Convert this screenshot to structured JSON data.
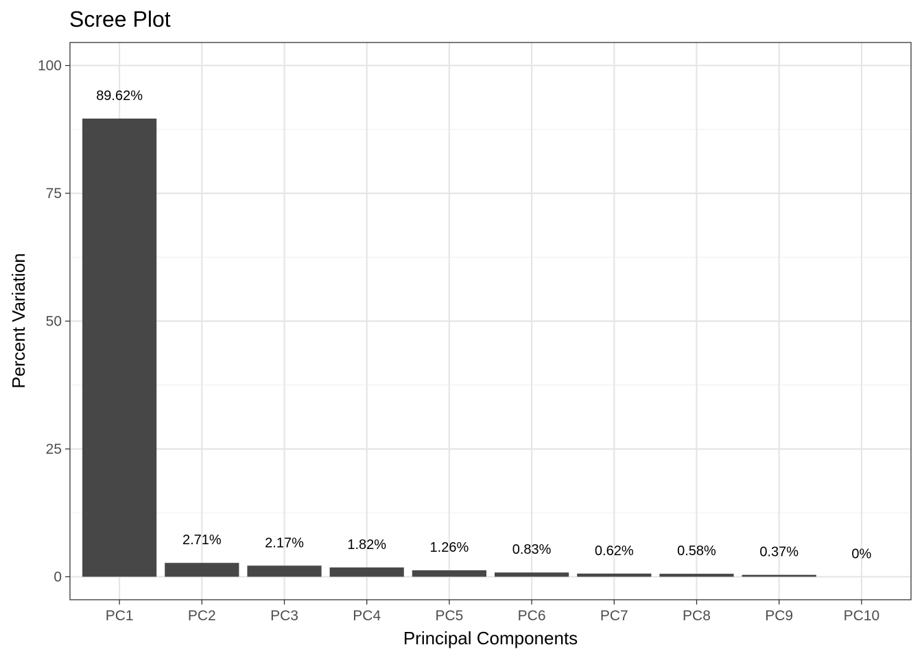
{
  "chart_data": {
    "type": "bar",
    "title": "Scree Plot",
    "xlabel": "Principal Components",
    "ylabel": "Percent Variation",
    "categories": [
      "PC1",
      "PC2",
      "PC3",
      "PC4",
      "PC5",
      "PC6",
      "PC7",
      "PC8",
      "PC9",
      "PC10"
    ],
    "values": [
      89.62,
      2.71,
      2.17,
      1.82,
      1.26,
      0.83,
      0.62,
      0.58,
      0.37,
      0
    ],
    "data_labels": [
      "89.62%",
      "2.71%",
      "2.17%",
      "1.82%",
      "1.26%",
      "0.83%",
      "0.62%",
      "0.58%",
      "0.37%",
      "0%"
    ],
    "yticks": [
      0,
      25,
      50,
      75,
      100
    ],
    "ytick_labels": [
      "0",
      "25",
      "50",
      "75",
      "100"
    ],
    "ylim": [
      -4.5,
      104.5
    ],
    "grid": true,
    "legend": "none",
    "colors": {
      "bar": "#474747",
      "grid_major": "#e5e5e5",
      "grid_minor": "#f0f0f0",
      "panel_border": "#333333",
      "tick_label": "#4d4d4d"
    }
  }
}
